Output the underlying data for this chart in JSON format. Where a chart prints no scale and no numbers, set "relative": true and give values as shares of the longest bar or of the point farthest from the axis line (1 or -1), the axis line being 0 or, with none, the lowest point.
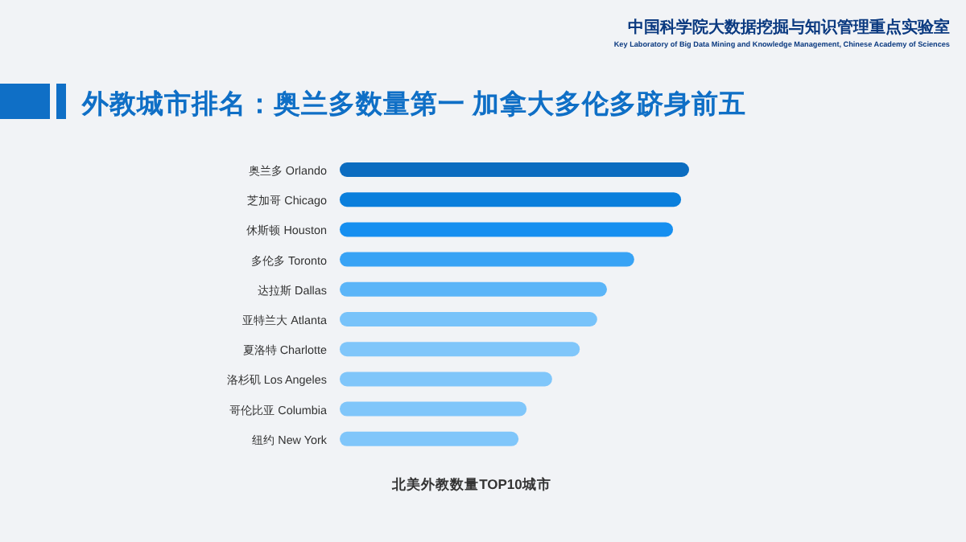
{
  "chart_data": {
    "type": "bar",
    "orientation": "horizontal",
    "relative": true,
    "title": "外教城市排名：奥兰多数量第一  加拿大多伦多跻身前五",
    "xlabel": "北美外教数量TOP10城市",
    "annotations": [
      "中国科学院大数据挖掘与知识管理重点实验室",
      "Key Laboratory of Big Data Mining and Knowledge Management, Chinese Academy of Sciences"
    ],
    "categories": [
      "奥兰多  Orlando",
      "芝加哥  Chicago",
      "休斯顿  Houston",
      "多伦多  Toronto",
      "达拉斯  Dallas",
      "亚特兰大  Atlanta",
      "夏洛特  Charlotte",
      "洛杉矶  Los Angeles",
      "哥伦比亚  Columbia",
      "纽约  New York"
    ],
    "values": [
      1,
      0.977,
      0.954,
      0.843,
      0.765,
      0.737,
      0.687,
      0.608,
      0.535,
      0.512
    ],
    "colors": [
      "#0b6cc0",
      "#0a7fdc",
      "#168ff0",
      "#38a3f5",
      "#5bb5f8",
      "#78c3fa",
      "#80c6fa",
      "#80c6fa",
      "#80c6fa",
      "#80c6fa"
    ],
    "data_labels": false
  }
}
